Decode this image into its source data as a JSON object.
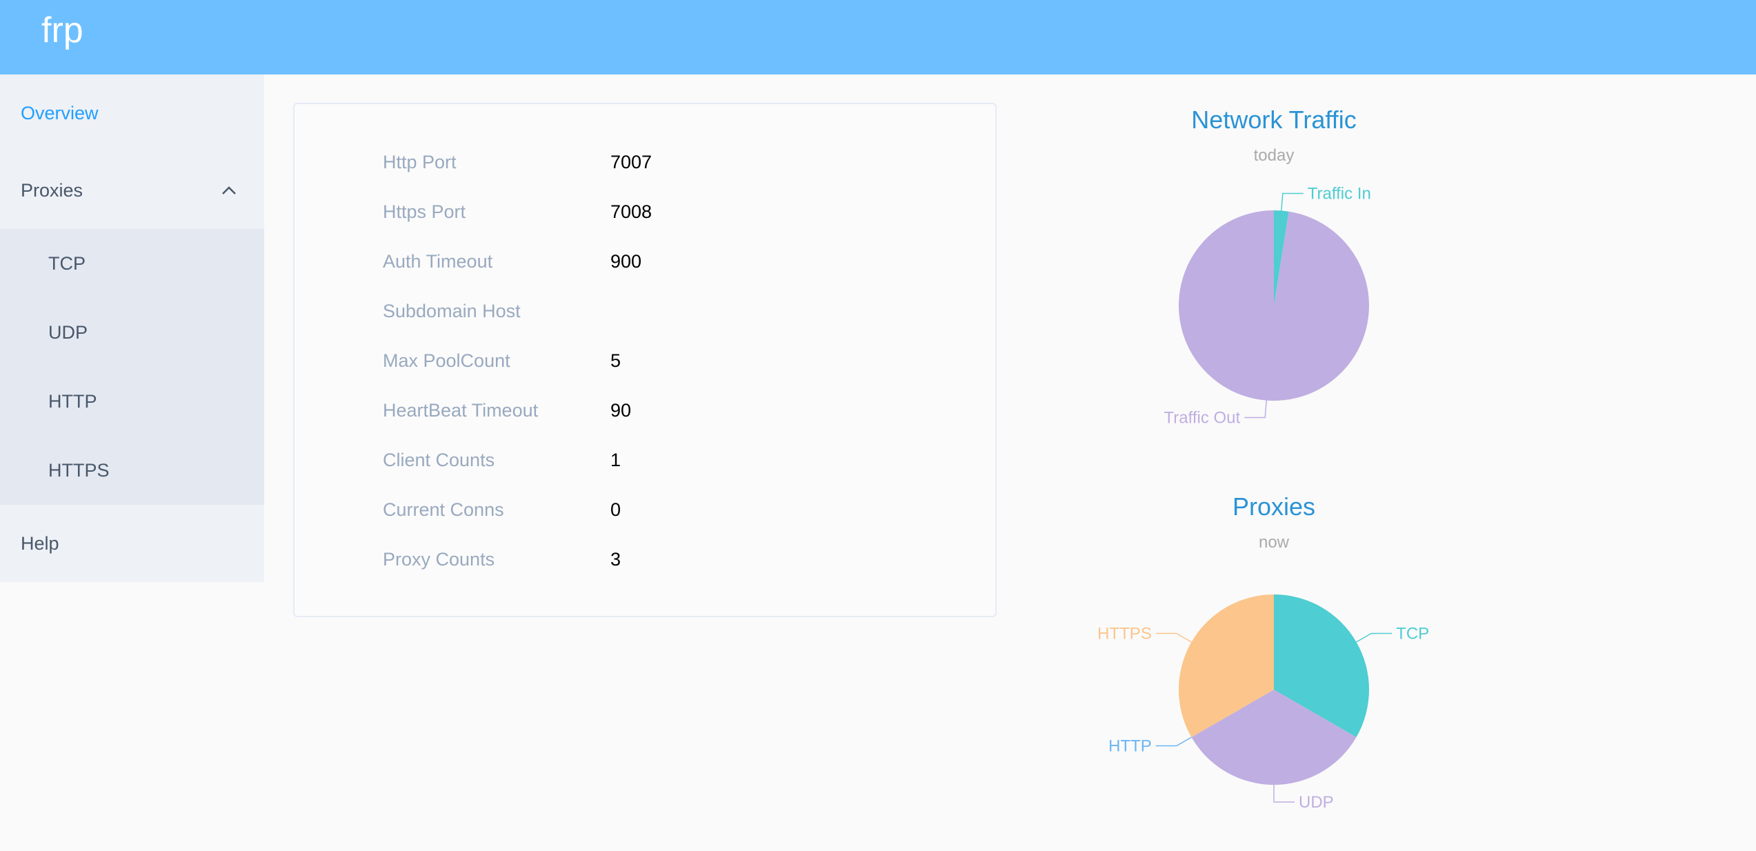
{
  "header": {
    "title": "frp"
  },
  "sidebar": {
    "items": [
      {
        "label": "Overview",
        "active": true
      },
      {
        "label": "Proxies",
        "expanded": true,
        "icon": "chevron-up-icon",
        "children": [
          {
            "label": "TCP"
          },
          {
            "label": "UDP"
          },
          {
            "label": "HTTP"
          },
          {
            "label": "HTTPS"
          }
        ]
      },
      {
        "label": "Help"
      }
    ]
  },
  "info": {
    "rows": [
      {
        "label": "Http Port",
        "value": "7007"
      },
      {
        "label": "Https Port",
        "value": "7008"
      },
      {
        "label": "Auth Timeout",
        "value": "900"
      },
      {
        "label": "Subdomain Host",
        "value": ""
      },
      {
        "label": "Max PoolCount",
        "value": "5"
      },
      {
        "label": "HeartBeat Timeout",
        "value": "90"
      },
      {
        "label": "Client Counts",
        "value": "1"
      },
      {
        "label": "Current Conns",
        "value": "0"
      },
      {
        "label": "Proxy Counts",
        "value": "3"
      }
    ]
  },
  "chart_data": [
    {
      "type": "pie",
      "title": "Network Traffic",
      "subtitle": "today",
      "categories": [
        "Traffic In",
        "Traffic Out"
      ],
      "values": [
        2.5,
        97.5
      ],
      "colors": [
        "#4ecdd2",
        "#bfaee2"
      ]
    },
    {
      "type": "pie",
      "title": "Proxies",
      "subtitle": "now",
      "categories": [
        "TCP",
        "UDP",
        "HTTP",
        "HTTPS"
      ],
      "values": [
        1,
        1,
        0,
        1
      ],
      "colors": [
        "#4ecdd2",
        "#bfaee2",
        "#6bb5f2",
        "#fbc58b"
      ]
    }
  ],
  "colors": {
    "header": "#6ebfff",
    "accent": "#20a0ff",
    "title": "#2a93d5"
  }
}
